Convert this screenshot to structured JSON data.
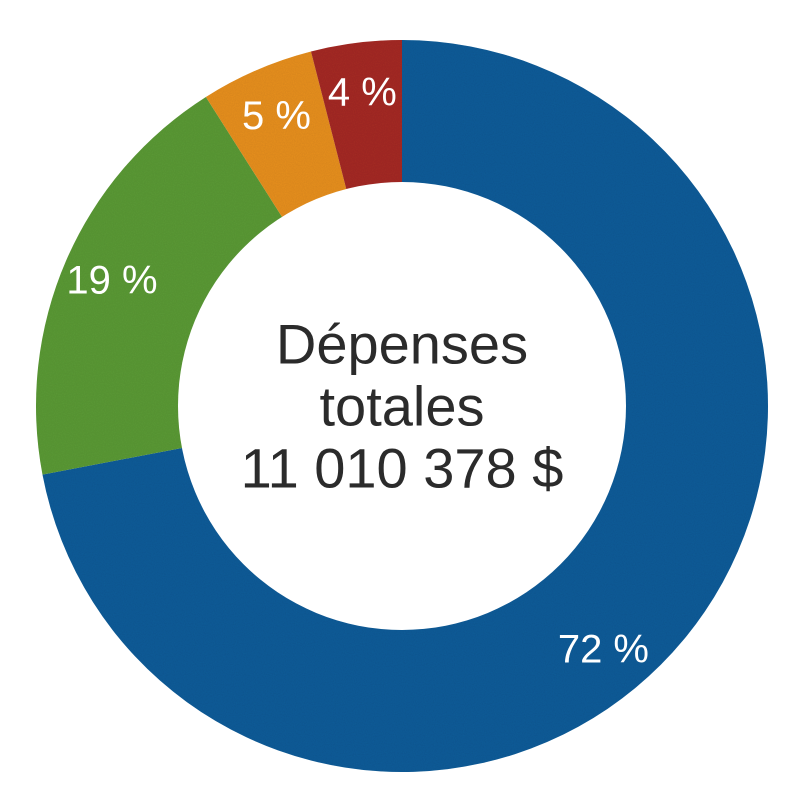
{
  "chart_data": {
    "type": "pie",
    "donut": true,
    "center_text": [
      "Dépenses",
      "totales",
      "11 010 378 $"
    ],
    "slices": [
      {
        "value": 72,
        "label": "72 %",
        "color": "#0C5C99"
      },
      {
        "value": 19,
        "label": "19 %",
        "color": "#5B9A35"
      },
      {
        "value": 5,
        "label": "5 %",
        "color": "#E8901E"
      },
      {
        "value": 4,
        "label": "4 %",
        "color": "#A52A22"
      }
    ],
    "start": "top",
    "direction": "clockwise"
  }
}
